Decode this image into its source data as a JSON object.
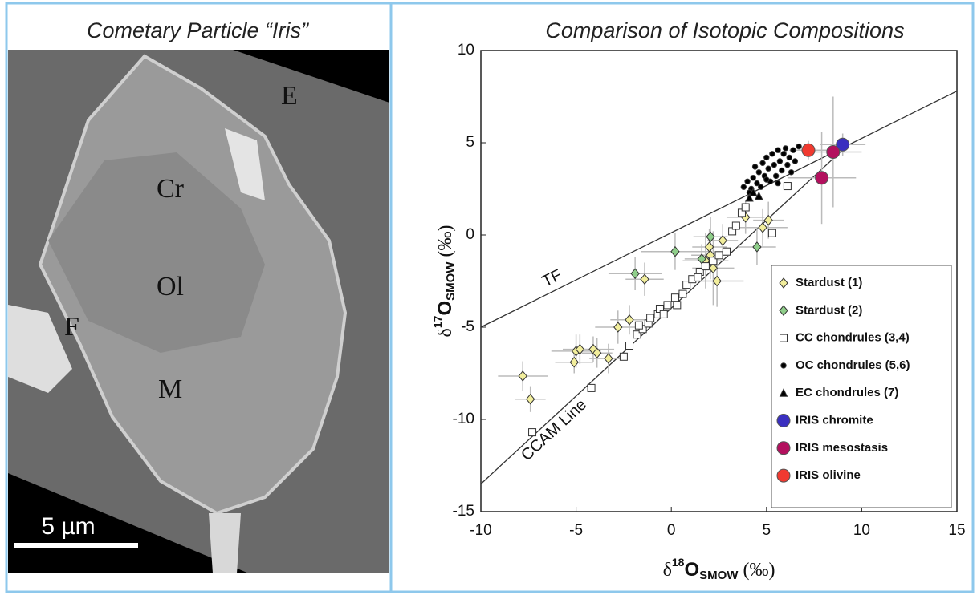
{
  "image": {
    "title": "Cometary Particle “Iris”",
    "labels": [
      "E",
      "Cr",
      "Ol",
      "F",
      "M"
    ],
    "scale_bar": "5 µm"
  },
  "chart_data": {
    "type": "scatter",
    "title": "Comparison of Isotopic Compositions",
    "x_label": {
      "prefix": "δ",
      "sup": "18",
      "main": "O",
      "sub": "SMOW",
      "suffix": "(‰)"
    },
    "y_label": {
      "prefix": "δ",
      "sup": "17",
      "main": "O",
      "sub": "SMOW",
      "suffix": "(‰)"
    },
    "xlim": [
      -10,
      15
    ],
    "ylim": [
      -15,
      10
    ],
    "xticks": [
      -10,
      -5,
      0,
      5,
      10,
      15
    ],
    "yticks": [
      -15,
      -10,
      -5,
      0,
      5,
      10
    ],
    "legend": "lower right",
    "lines": [
      {
        "label": "TF",
        "x": [
          -10,
          15
        ],
        "y": [
          -5,
          7.8
        ]
      },
      {
        "label": "CCAM Line",
        "x": [
          -10,
          9.3
        ],
        "y": [
          -13.5,
          4.9
        ]
      }
    ],
    "series": [
      {
        "name": "Stardust (1)",
        "color": "#f2ee9c",
        "marker": "diamond",
        "x": [
          -7.8,
          -7.4,
          -5.1,
          -5.0,
          -4.8,
          -4.1,
          -3.9,
          -3.3,
          -2.8,
          -2.2,
          -1.4,
          1.8,
          2.0,
          2.05,
          2.2,
          2.4,
          2.7,
          3.9,
          4.8,
          5.1
        ],
        "y": [
          -7.65,
          -8.9,
          -6.9,
          -6.3,
          -6.2,
          -6.2,
          -6.4,
          -6.7,
          -5.0,
          -4.6,
          -2.4,
          -1.4,
          -0.65,
          -1.1,
          -1.8,
          -2.5,
          -0.3,
          0.96,
          0.4,
          0.8
        ],
        "xerr": [
          1.3,
          0.8,
          1.0,
          1.3,
          0.9,
          1.1,
          0.8,
          1.0,
          1.2,
          1.0,
          1.0,
          1.2,
          0.9,
          1.0,
          1.1,
          1.4,
          0.8,
          1.0,
          1.3,
          0.8
        ],
        "yerr": [
          0.8,
          0.7,
          0.6,
          0.9,
          0.8,
          0.7,
          0.8,
          0.8,
          0.9,
          0.8,
          0.9,
          1.5,
          1.0,
          1.3,
          2.0,
          1.4,
          0.9,
          0.9,
          1.0,
          1.0
        ]
      },
      {
        "name": "Stardust (2)",
        "color": "#8fce8a",
        "marker": "diamond",
        "x": [
          -1.9,
          0.2,
          1.6,
          2.06,
          4.5
        ],
        "y": [
          -2.1,
          -0.9,
          -1.3,
          -0.1,
          -0.65
        ],
        "xerr": [
          1.4,
          1.8,
          0.9,
          0.9,
          1.0
        ],
        "yerr": [
          0.9,
          1.0,
          0.8,
          1.1,
          1.0
        ]
      },
      {
        "name": "CC chondrules (3,4)",
        "color": "#ffffff",
        "marker": "square",
        "x": [
          -7.3,
          -4.2,
          -2.5,
          -2.2,
          -1.8,
          -1.5,
          -1.2,
          -1.1,
          -0.7,
          -0.6,
          -0.2,
          0.2,
          0.6,
          0.8,
          1.1,
          1.5,
          1.8,
          2.2,
          2.5,
          2.9,
          3.2,
          3.4,
          3.7,
          3.9,
          5.3,
          6.1,
          0.3,
          -0.4,
          -1.7,
          1.4
        ],
        "y": [
          -10.7,
          -8.3,
          -6.6,
          -6.0,
          -5.4,
          -5.1,
          -4.8,
          -4.5,
          -4.3,
          -4.0,
          -3.8,
          -3.4,
          -3.2,
          -2.7,
          -2.4,
          -2.0,
          -1.7,
          -1.4,
          -1.1,
          -0.9,
          0.2,
          0.5,
          1.2,
          1.5,
          0.1,
          2.65,
          -3.8,
          -4.3,
          -4.9,
          -2.3
        ]
      },
      {
        "name": "OC chondrules (5,6)",
        "color": "#000000",
        "marker": "circle",
        "x": [
          3.8,
          4.0,
          4.2,
          4.3,
          4.5,
          4.6,
          4.7,
          4.8,
          4.9,
          5.0,
          5.1,
          5.2,
          5.3,
          5.4,
          5.5,
          5.6,
          5.7,
          5.8,
          5.9,
          6.0,
          6.1,
          6.2,
          6.4,
          6.5,
          6.7,
          4.4,
          5.0,
          4.1,
          5.6,
          6.3
        ],
        "y": [
          2.6,
          2.9,
          2.5,
          3.1,
          2.8,
          3.4,
          2.6,
          3.9,
          3.2,
          4.2,
          3.6,
          2.9,
          4.4,
          3.8,
          3.2,
          4.6,
          4.0,
          3.5,
          4.4,
          4.7,
          3.8,
          4.2,
          4.6,
          4.0,
          4.8,
          3.7,
          3.0,
          2.3,
          2.8,
          3.4
        ]
      },
      {
        "name": "EC chondrules (7)",
        "color": "#000000",
        "marker": "triangle",
        "x": [
          4.1,
          4.3,
          4.6
        ],
        "y": [
          2.0,
          2.3,
          2.1
        ]
      },
      {
        "name": "IRIS chromite",
        "color": "#3a2fc0",
        "marker": "big",
        "x": [
          9.0
        ],
        "y": [
          4.9
        ],
        "xerr": [
          1.2
        ],
        "yerr": [
          0.6
        ]
      },
      {
        "name": "IRIS mesostasis",
        "color": "#b3105e",
        "marker": "big",
        "x": [
          8.5,
          7.9
        ],
        "y": [
          4.5,
          3.1
        ],
        "xerr": [
          1.5,
          1.8
        ],
        "yerr": [
          3.0,
          2.5
        ]
      },
      {
        "name": "IRIS olivine",
        "color": "#f03a30",
        "marker": "big",
        "x": [
          7.2
        ],
        "y": [
          4.6
        ],
        "xerr": [
          1.0
        ],
        "yerr": [
          0.5
        ]
      }
    ]
  }
}
